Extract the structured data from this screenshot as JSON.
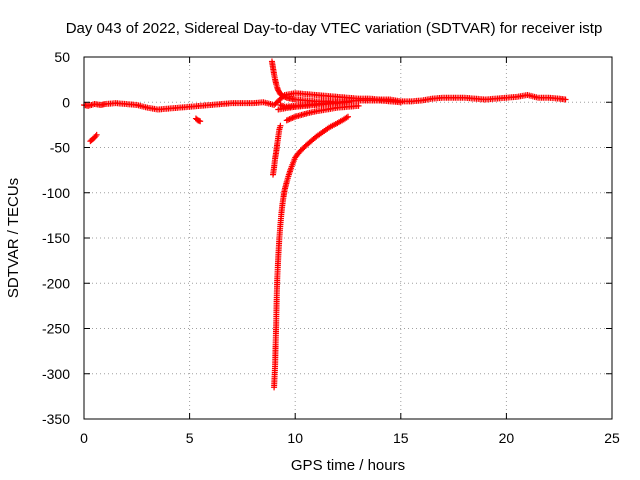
{
  "chart_data": {
    "type": "scatter",
    "title": "Day 043 of 2022, Sidereal Day-to-day VTEC variation (SDTVAR) for receiver istp",
    "xlabel": "GPS time / hours",
    "ylabel": "SDTVAR / TECUs",
    "xlim": [
      0,
      25
    ],
    "ylim": [
      -350,
      50
    ],
    "x_ticks": [
      0,
      5,
      10,
      15,
      20,
      25
    ],
    "y_ticks": [
      -350,
      -300,
      -250,
      -200,
      -150,
      -100,
      -50,
      0,
      50
    ],
    "grid": true,
    "marker": "plus",
    "marker_color": "#ff0000",
    "series": [
      {
        "x": [
          0.0,
          0.2,
          0.5,
          0.8,
          1.0,
          1.5,
          2.0,
          2.5,
          3.0,
          3.5,
          4.0,
          4.5,
          5.0,
          5.5,
          6.0,
          6.5,
          7.0,
          7.5,
          8.0,
          8.5,
          9.0,
          9.5,
          10.0,
          10.5,
          11.0,
          11.5,
          12.0,
          12.5,
          13.0,
          13.5,
          14.0,
          14.5,
          15.0,
          15.5,
          16.0,
          16.5,
          17.0,
          17.5,
          18.0,
          18.5,
          19.0,
          19.5,
          20.0,
          20.5,
          21.0,
          21.5,
          22.0,
          22.5,
          22.8
        ],
        "y": [
          -3,
          -4,
          -2,
          -3,
          -2,
          -1,
          -2,
          -3,
          -6,
          -8,
          -7,
          -6,
          -5,
          -4,
          -3,
          -2,
          -1,
          -1,
          -1,
          0,
          -3,
          8,
          10,
          9,
          8,
          7,
          6,
          5,
          4,
          4,
          3,
          3,
          1,
          1,
          2,
          4,
          5,
          5,
          5,
          4,
          3,
          4,
          5,
          6,
          8,
          5,
          5,
          4,
          3
        ]
      },
      {
        "x": [
          0.3,
          0.4,
          0.5,
          0.6
        ],
        "y": [
          -43,
          -41,
          -39,
          -36
        ]
      },
      {
        "x": [
          5.3,
          5.4,
          5.5
        ],
        "y": [
          -18,
          -20,
          -21
        ]
      },
      {
        "x": [
          9.3,
          9.5,
          10.0,
          10.5,
          11.0,
          11.5,
          12.0,
          12.5,
          13.0,
          13.5,
          14.0,
          14.5,
          15.0
        ],
        "y": [
          -3,
          -5,
          -4,
          -3,
          -2,
          -1,
          0,
          1,
          2,
          2,
          2,
          1,
          0
        ]
      },
      {
        "x": [
          9.2,
          9.7,
          10.0,
          10.5,
          11.0,
          11.5,
          12.0,
          12.5
        ],
        "y": [
          -8,
          -6,
          -5,
          -4,
          -3,
          -2,
          -1,
          0
        ]
      },
      {
        "x": [
          8.9,
          8.95,
          9.0,
          9.05,
          9.1,
          9.15,
          9.2,
          9.3,
          9.4,
          9.6,
          9.8,
          10.0,
          10.5,
          11.0,
          11.5,
          12.0
        ],
        "y": [
          45,
          38,
          31,
          25,
          20,
          16,
          13,
          9,
          7,
          5,
          4,
          3,
          2,
          1,
          1,
          0
        ]
      },
      {
        "x": [
          8.95,
          9.0,
          9.05,
          9.1,
          9.15,
          9.2,
          9.25,
          9.3
        ],
        "y": [
          -80,
          -72,
          -62,
          -55,
          -46,
          -38,
          -30,
          -26
        ]
      },
      {
        "x": [
          9.0,
          9.02,
          9.05,
          9.07,
          9.1,
          9.12,
          9.15,
          9.2,
          9.25,
          9.3,
          9.35,
          9.4,
          9.45,
          9.5,
          9.6,
          9.7,
          9.8,
          9.9,
          10.0,
          10.2,
          10.5,
          10.8,
          11.0,
          11.3,
          11.6,
          12.0,
          12.3,
          12.5
        ],
        "y": [
          -315,
          -305,
          -290,
          -270,
          -245,
          -220,
          -195,
          -170,
          -150,
          -135,
          -122,
          -112,
          -104,
          -97,
          -88,
          -80,
          -73,
          -67,
          -61,
          -55,
          -48,
          -42,
          -38,
          -33,
          -28,
          -23,
          -19,
          -16
        ]
      },
      {
        "x": [
          9.6,
          9.8,
          10.0,
          10.3,
          10.6,
          11.0,
          11.5,
          12.0,
          12.5,
          13.0
        ],
        "y": [
          -20,
          -18,
          -16,
          -14,
          -12,
          -10,
          -8,
          -6,
          -5,
          -4
        ]
      }
    ]
  }
}
